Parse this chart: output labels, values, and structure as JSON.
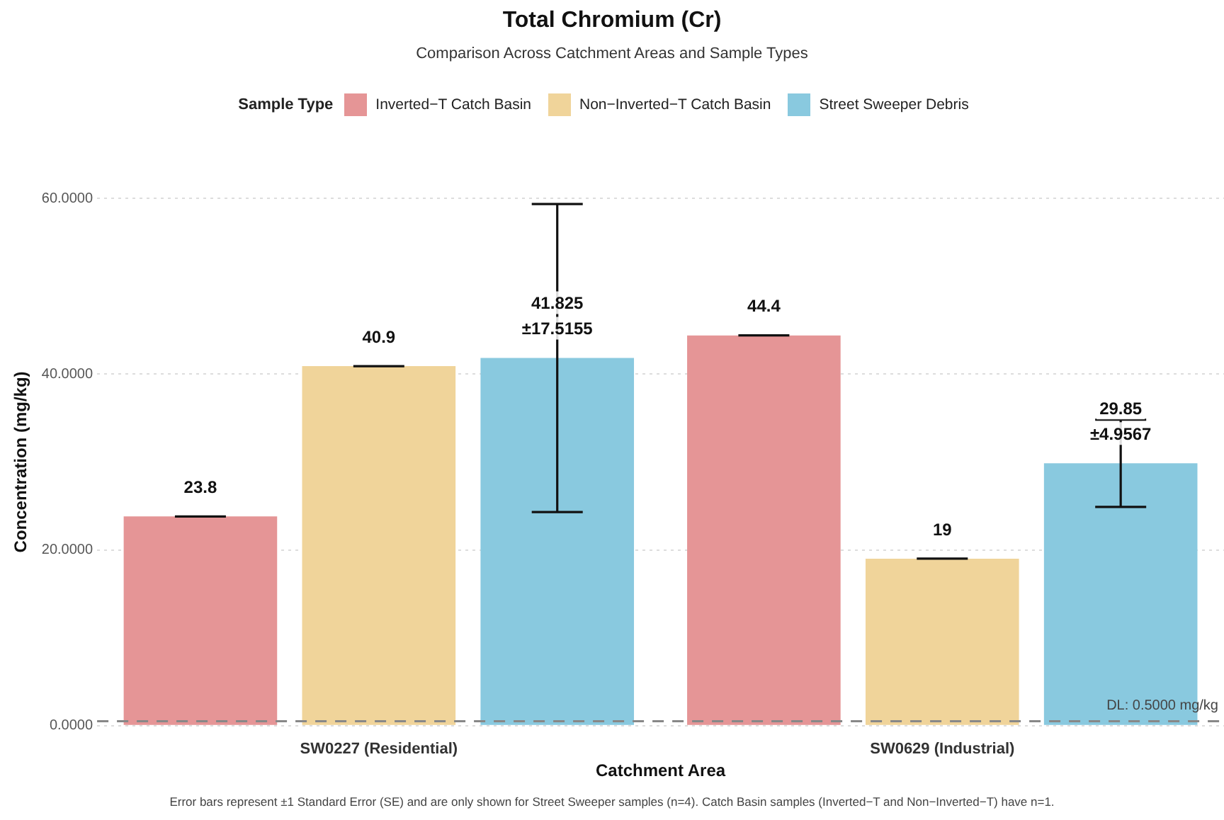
{
  "chart_data": {
    "type": "bar",
    "title": "Total Chromium (Cr)",
    "subtitle": "Comparison Across Catchment Areas and Sample Types",
    "xlabel": "Catchment Area",
    "ylabel": "Concentration (mg/kg)",
    "legend_title": "Sample Type",
    "legend": "top",
    "grid": "y",
    "categories": [
      "SW0227 (Residential)",
      "SW0629 (Industrial)"
    ],
    "series": [
      {
        "name": "Inverted−T Catch Basin",
        "color": "#e59596",
        "values": [
          23.8,
          44.4
        ],
        "errors": [
          0,
          0
        ],
        "value_labels": [
          "23.8",
          "44.4"
        ]
      },
      {
        "name": "Non−Inverted−T Catch Basin",
        "color": "#f0d49a",
        "values": [
          40.9,
          19
        ],
        "errors": [
          0,
          0
        ],
        "value_labels": [
          "40.9",
          "19"
        ]
      },
      {
        "name": "Street Sweeper Debris",
        "color": "#89c9df",
        "values": [
          41.825,
          29.85
        ],
        "errors": [
          17.5155,
          4.9567
        ],
        "value_labels": [
          "41.825\n±17.5155",
          "29.85\n±4.9567"
        ]
      }
    ],
    "ylim": [
      0,
      60
    ],
    "yticks": [
      {
        "value": 0,
        "label": "0.0000"
      },
      {
        "value": 20,
        "label": "20.0000"
      },
      {
        "value": 40,
        "label": "40.0000"
      },
      {
        "value": 60,
        "label": "60.0000"
      }
    ],
    "ref_lines": [
      {
        "axis": "y",
        "value": 0.5,
        "label": "DL: 0.5000 mg/kg",
        "color": "#888888",
        "line_style": "dashed"
      }
    ],
    "annotations": [
      "Error bars represent ±1 Standard Error (SE) and are only shown for Street Sweeper samples (n=4). Catch Basin samples (Inverted−T and Non−Inverted−T) have n=1."
    ]
  }
}
